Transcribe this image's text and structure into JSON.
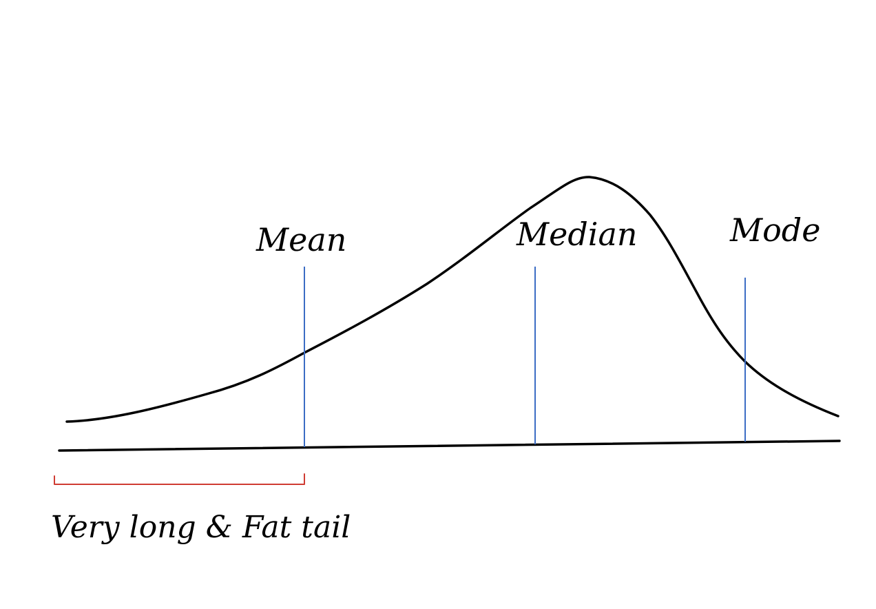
{
  "diagram": {
    "markers": {
      "mean": {
        "label": "Mean"
      },
      "median": {
        "label": "Median"
      },
      "mode": {
        "label": "Mode"
      }
    },
    "tail": {
      "label": "Very long & Fat tail"
    },
    "colors": {
      "curve": "#000000",
      "axis": "#000000",
      "marker_lines": "#3b6cc4",
      "tail_bracket": "#cf3b32",
      "background": "#ffffff"
    }
  }
}
